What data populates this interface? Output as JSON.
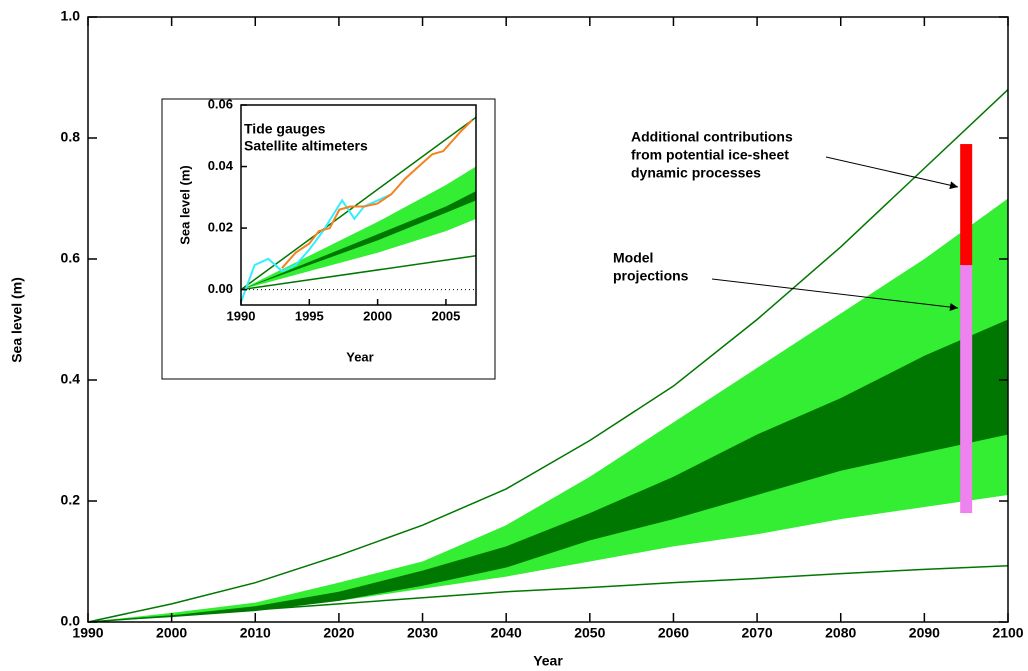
{
  "chart_data": [
    {
      "type": "line",
      "x_label": "Year",
      "y_label": "Sea level (m)",
      "xlim": [
        1990,
        2100
      ],
      "ylim": [
        0,
        1
      ],
      "xticks": [
        1990,
        2000,
        2010,
        2020,
        2030,
        2040,
        2050,
        2060,
        2070,
        2080,
        2090,
        2100
      ],
      "yticks": [
        {
          "value": 0,
          "label": "0.0"
        },
        {
          "value": 0.2,
          "label": "0.2"
        },
        {
          "value": 0.4,
          "label": "0.4"
        },
        {
          "value": 0.6,
          "label": "0.6"
        },
        {
          "value": 0.8,
          "label": "0.8"
        },
        {
          "value": 1,
          "label": "1.0"
        }
      ],
      "bands": [
        {
          "color": "#33ee33",
          "x": [
            1990,
            2000,
            2010,
            2020,
            2030,
            2040,
            2050,
            2060,
            2070,
            2080,
            2090,
            2100
          ],
          "upper": [
            0,
            0.015,
            0.032,
            0.065,
            0.1,
            0.16,
            0.24,
            0.33,
            0.42,
            0.51,
            0.6,
            0.7
          ],
          "lower": [
            0,
            0.01,
            0.02,
            0.035,
            0.055,
            0.075,
            0.1,
            0.125,
            0.145,
            0.17,
            0.19,
            0.21
          ]
        },
        {
          "color": "#007700",
          "x": [
            1990,
            2000,
            2010,
            2020,
            2030,
            2040,
            2050,
            2060,
            2070,
            2080,
            2090,
            2100
          ],
          "upper": [
            0,
            0.011,
            0.026,
            0.05,
            0.085,
            0.125,
            0.18,
            0.24,
            0.31,
            0.37,
            0.44,
            0.5
          ],
          "lower": [
            0,
            0.008,
            0.018,
            0.035,
            0.06,
            0.09,
            0.135,
            0.17,
            0.21,
            0.25,
            0.28,
            0.31
          ]
        }
      ],
      "series": [
        {
          "color": "#007700",
          "x": [
            1990,
            2000,
            2010,
            2020,
            2030,
            2040,
            2050,
            2060,
            2070,
            2080,
            2090,
            2100
          ],
          "values": [
            0,
            0.03,
            0.065,
            0.11,
            0.16,
            0.22,
            0.3,
            0.39,
            0.5,
            0.62,
            0.75,
            0.88
          ]
        },
        {
          "color": "#007700",
          "x": [
            1990,
            2000,
            2010,
            2020,
            2030,
            2040,
            2050,
            2060,
            2070,
            2080,
            2090,
            2100
          ],
          "values": [
            0,
            0.01,
            0.02,
            0.03,
            0.04,
            0.05,
            0.057,
            0.065,
            0.072,
            0.08,
            0.087,
            0.093
          ]
        }
      ],
      "bars": [
        {
          "x": 2095,
          "bottom": 0.18,
          "top": 0.59,
          "color": "#ee82ee"
        },
        {
          "x": 2095,
          "bottom": 0.59,
          "top": 0.79,
          "color": "#ff0000"
        }
      ],
      "annotations": [
        {
          "lines": [
            "Additional contributions",
            "from potential ice-sheet",
            "dynamic processes"
          ]
        },
        {
          "lines": [
            "Model",
            "projections"
          ]
        }
      ]
    },
    {
      "type": "line",
      "x_label": "Year",
      "y_label": "Sea level (m)",
      "xlim": [
        1990,
        2007.2
      ],
      "ylim": [
        -0.005,
        0.06
      ],
      "xticks": [
        1990,
        1995,
        2000,
        2005
      ],
      "yticks": [
        {
          "value": 0,
          "label": "0.00"
        },
        {
          "value": 0.02,
          "label": "0.02"
        },
        {
          "value": 0.04,
          "label": "0.04"
        },
        {
          "value": 0.06,
          "label": "0.06"
        }
      ],
      "reference_line": 0,
      "bands": [
        {
          "color": "#33ee33",
          "x": [
            1990,
            1995,
            2000,
            2005,
            2007.2
          ],
          "upper": [
            0,
            0.011,
            0.022,
            0.034,
            0.04
          ],
          "lower": [
            0,
            0.006,
            0.012,
            0.019,
            0.023
          ]
        },
        {
          "color": "#007700",
          "x": [
            1990,
            1995,
            2000,
            2005,
            2007.2
          ],
          "upper": [
            0,
            0.009,
            0.018,
            0.027,
            0.032
          ],
          "lower": [
            0,
            0.008,
            0.016,
            0.025,
            0.029
          ]
        }
      ],
      "series": [
        {
          "color": "#007700",
          "x": [
            1990,
            2007.2
          ],
          "values": [
            0,
            0.056
          ]
        },
        {
          "color": "#007700",
          "x": [
            1990,
            2007.2
          ],
          "values": [
            0,
            0.011
          ]
        },
        {
          "name": "Tide gauges",
          "color": "#33eeff",
          "x": [
            1990,
            1991,
            1992,
            1993,
            1994,
            1995,
            1996,
            1997.4,
            1998.3,
            1999,
            2000,
            2001
          ],
          "values": [
            -0.004,
            0.008,
            0.01,
            0.006,
            0.008,
            0.013,
            0.019,
            0.029,
            0.023,
            0.027,
            0.029,
            0.031
          ]
        },
        {
          "name": "Satellite altimeters",
          "color": "#f58220",
          "x": [
            1993,
            1994,
            1995,
            1995.7,
            1996.5,
            1997.2,
            1998,
            1999,
            2000,
            2001,
            2002,
            2003,
            2004,
            2004.8,
            2006,
            2006.9
          ],
          "values": [
            0.007,
            0.012,
            0.015,
            0.019,
            0.02,
            0.026,
            0.027,
            0.027,
            0.028,
            0.031,
            0.036,
            0.04,
            0.044,
            0.045,
            0.051,
            0.055
          ]
        }
      ]
    }
  ]
}
